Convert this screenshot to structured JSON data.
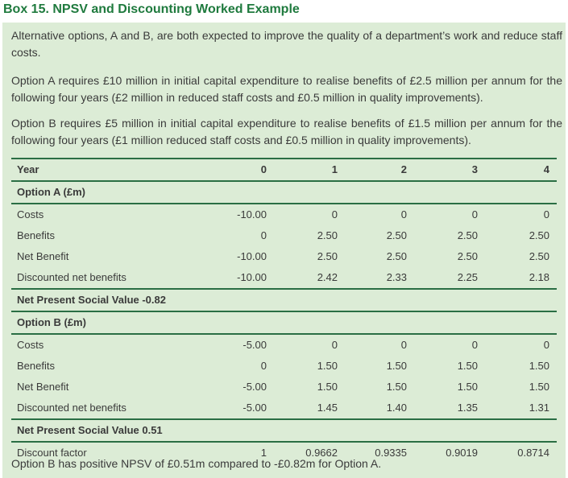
{
  "title": "Box 15. NPSV and Discounting Worked Example",
  "paragraphs": [
    "Alternative options, A and B, are both expected to improve the quality of a department’s work and reduce staff costs.",
    "Option A requires £10 million in initial capital expenditure to realise benefits of £2.5 million per annum for the following four years (£2 million in reduced staff costs and £0.5 million in quality improvements).",
    "Option B requires £5 million in initial capital expenditure to realise benefits of £1.5 million per annum for the following four years (£1 million reduced staff costs and £0.5 million in quality improvements)."
  ],
  "table": {
    "year_label": "Year",
    "years": [
      "0",
      "1",
      "2",
      "3",
      "4"
    ],
    "option_a": {
      "heading": "Option A (£m)",
      "rows": [
        {
          "label": "Costs",
          "values": [
            "-10.00",
            "0",
            "0",
            "0",
            "0"
          ]
        },
        {
          "label": "Benefits",
          "values": [
            "0",
            "2.50",
            "2.50",
            "2.50",
            "2.50"
          ]
        },
        {
          "label": "Net Benefit",
          "values": [
            "-10.00",
            "2.50",
            "2.50",
            "2.50",
            "2.50"
          ]
        },
        {
          "label": "Discounted net benefits",
          "values": [
            "-10.00",
            "2.42",
            "2.33",
            "2.25",
            "2.18"
          ]
        }
      ],
      "npsv": "Net Present Social Value -0.82"
    },
    "option_b": {
      "heading": "Option B (£m)",
      "rows": [
        {
          "label": "Costs",
          "values": [
            "-5.00",
            "0",
            "0",
            "0",
            "0"
          ]
        },
        {
          "label": "Benefits",
          "values": [
            "0",
            "1.50",
            "1.50",
            "1.50",
            "1.50"
          ]
        },
        {
          "label": "Net Benefit",
          "values": [
            "-5.00",
            "1.50",
            "1.50",
            "1.50",
            "1.50"
          ]
        },
        {
          "label": "Discounted net benefits",
          "values": [
            "-5.00",
            "1.45",
            "1.40",
            "1.35",
            "1.31"
          ]
        }
      ],
      "npsv": "Net Present Social Value 0.51"
    },
    "discount": {
      "label": "Discount factor",
      "values": [
        "1",
        "0.9662",
        "0.9335",
        "0.9019",
        "0.8714"
      ]
    }
  },
  "footer": "Option B has positive NPSV of £0.51m compared to -£0.82m for Option A."
}
